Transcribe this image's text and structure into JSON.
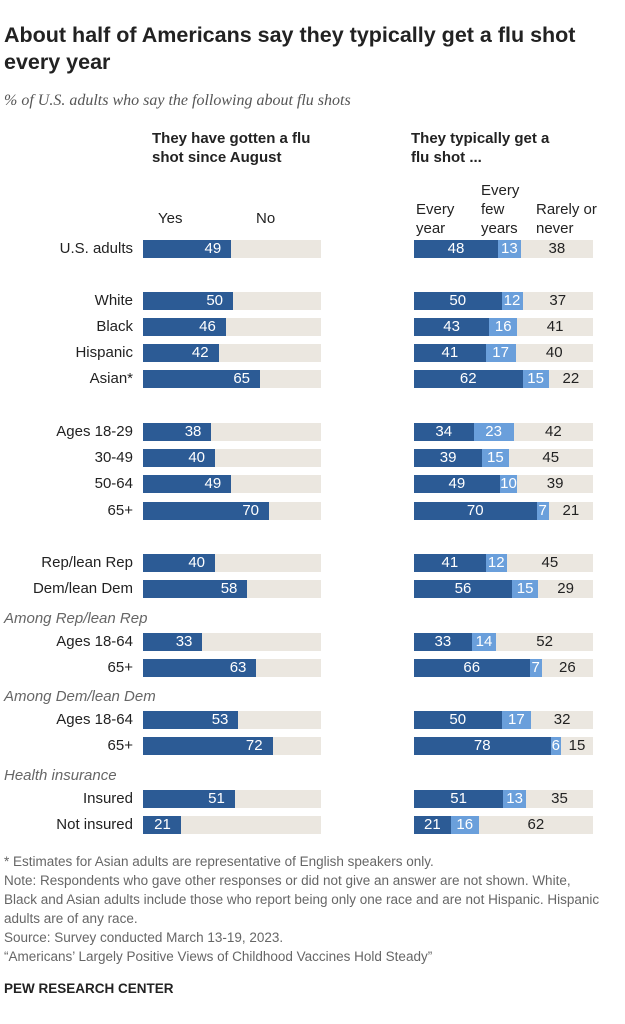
{
  "title": "About half of Americans say they typically get a flu shot every year",
  "subtitle": "% of U.S. adults who say the following about flu shots",
  "chart_data": [
    {
      "type": "bar",
      "title": "They have gotten a flu shot since August",
      "categories": [
        "U.S. adults",
        "White",
        "Black",
        "Hispanic",
        "Asian*",
        "Ages 18-29",
        "30-49",
        "50-64",
        "65+",
        "Rep/lean Rep",
        "Dem/lean Dem",
        "Ages 18-64",
        "65+",
        "Ages 18-64",
        "65+",
        "Insured",
        "Not insured"
      ],
      "category_headings": [
        null,
        null,
        null,
        null,
        null,
        null,
        null,
        null,
        null,
        null,
        null,
        "Among Rep/lean Rep",
        null,
        "Among Dem/lean Dem",
        null,
        "Health insurance",
        null
      ],
      "series": [
        {
          "name": "Yes",
          "color": "#2c5b95",
          "values": [
            49,
            50,
            46,
            42,
            65,
            38,
            40,
            49,
            70,
            40,
            58,
            33,
            63,
            53,
            72,
            51,
            21
          ]
        }
      ],
      "track_label": "No",
      "track_color": "#ebe7e0",
      "xlim": [
        0,
        100
      ]
    },
    {
      "type": "stacked-bar",
      "title": "They typically get a flu shot ...",
      "series": [
        {
          "name": "Every year",
          "color": "#2c5b95",
          "values": [
            48,
            50,
            43,
            41,
            62,
            34,
            39,
            49,
            70,
            41,
            56,
            33,
            66,
            50,
            78,
            51,
            21
          ]
        },
        {
          "name": "Every few years",
          "color": "#6a9fdb",
          "values": [
            13,
            12,
            16,
            17,
            15,
            23,
            15,
            10,
            7,
            12,
            15,
            14,
            7,
            17,
            6,
            13,
            16
          ]
        },
        {
          "name": "Rarely or never",
          "color": "#ebe7e0",
          "values": [
            38,
            37,
            41,
            40,
            22,
            42,
            45,
            39,
            21,
            45,
            29,
            52,
            26,
            32,
            15,
            35,
            62
          ]
        }
      ],
      "xlim": [
        0,
        100
      ]
    }
  ],
  "notes": [
    "* Estimates for Asian adults are representative of English speakers only.",
    "Note: Respondents who gave other responses or did not give an answer are not shown. White, Black and Asian adults include those who report being only one race and are not Hispanic. Hispanic adults are of any race.",
    "Source: Survey conducted March 13-19, 2023.",
    "“Americans’ Largely Positive Views of Childhood Vaccines Hold Steady”"
  ],
  "footer": "PEW RESEARCH CENTER"
}
